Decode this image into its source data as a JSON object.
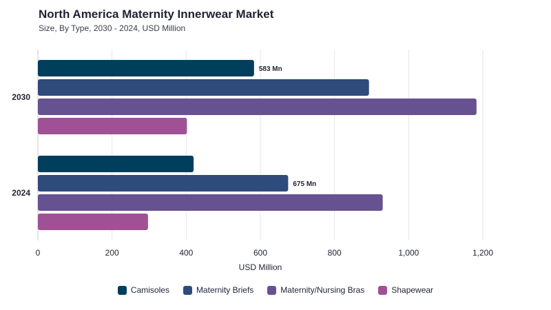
{
  "colors": {
    "Camisoles": "#003f5c",
    "Maternity Briefs": "#2f4b7c",
    "Maternity/Nursing Bras": "#665191",
    "Shapewear": "#a05195"
  },
  "chart_data": {
    "type": "bar",
    "orientation": "horizontal",
    "title": "North America Maternity Innerwear Market",
    "subtitle": "Size, By Type, 2030 - 2024, USD Million",
    "xlabel": "USD Million",
    "ylabel": "",
    "xlim": [
      0,
      1200
    ],
    "xticks": [
      0,
      200,
      400,
      600,
      800,
      1000,
      1200
    ],
    "xtick_labels": [
      "0",
      "200",
      "400",
      "600",
      "800",
      "1,000",
      "1,200"
    ],
    "categories": [
      "2030",
      "2024"
    ],
    "series": [
      {
        "name": "Camisoles",
        "values": [
          583,
          420
        ],
        "labels": [
          "583 Mn",
          ""
        ]
      },
      {
        "name": "Maternity Briefs",
        "values": [
          893,
          675
        ],
        "labels": [
          "",
          "675 Mn"
        ]
      },
      {
        "name": "Maternity/Nursing Bras",
        "values": [
          1183,
          930
        ],
        "labels": [
          "",
          ""
        ]
      },
      {
        "name": "Shapewear",
        "values": [
          402,
          297
        ],
        "labels": [
          "",
          ""
        ]
      }
    ],
    "grid": true,
    "legend": "bottom"
  }
}
